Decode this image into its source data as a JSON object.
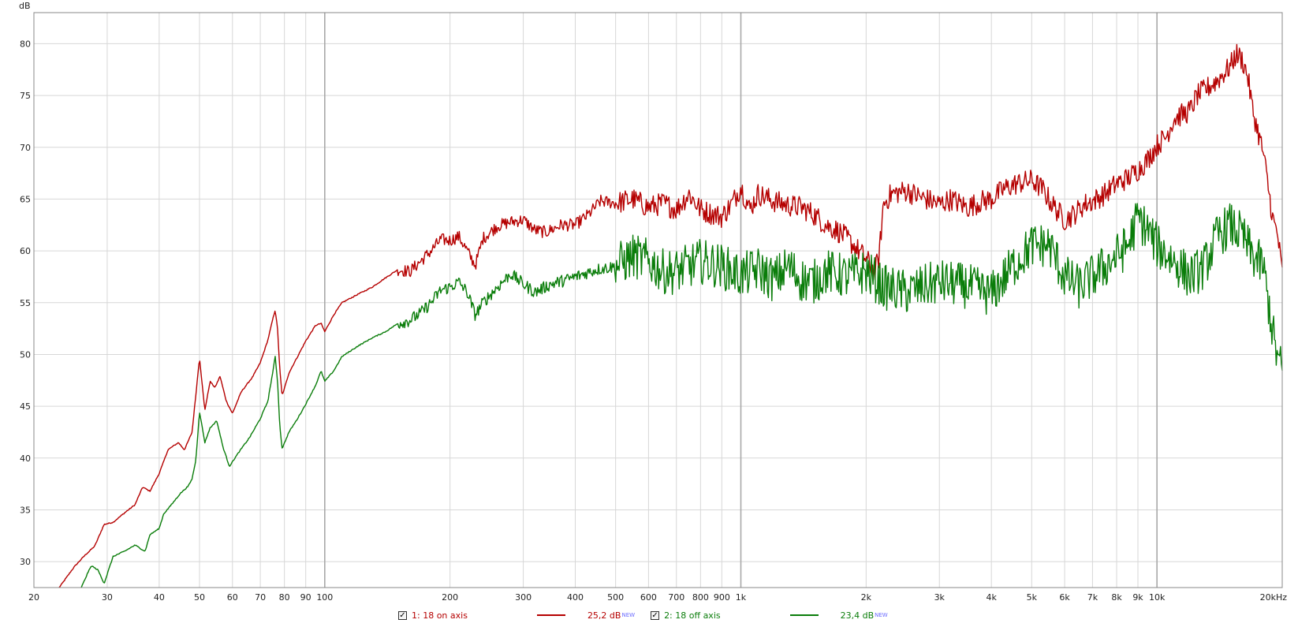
{
  "colors": {
    "series_1": "#b50000",
    "series_2": "#0a7d0a",
    "grid": "#d7d7d7",
    "grid_major": "#a8a8a8"
  },
  "legend": {
    "items": [
      {
        "checked": true,
        "check_glyph": "✓",
        "label": "1: 18 on axis",
        "value": "25,2 dB",
        "tag": "NEW",
        "color": "#b50000"
      },
      {
        "checked": true,
        "check_glyph": "✓",
        "label": "2: 18 off axis",
        "value": "23,4 dB",
        "tag": "NEW",
        "color": "#0a7d0a"
      }
    ]
  },
  "chart_data": {
    "type": "line",
    "x_scale": "log",
    "y_unit_label": "dB",
    "xlim": [
      20,
      20000
    ],
    "ylim": [
      27.5,
      83
    ],
    "grid": true,
    "y_ticks": [
      30,
      35,
      40,
      45,
      50,
      55,
      60,
      65,
      70,
      75,
      80
    ],
    "x_ticks": [
      {
        "v": 20,
        "t": "20"
      },
      {
        "v": 30,
        "t": "30"
      },
      {
        "v": 40,
        "t": "40"
      },
      {
        "v": 50,
        "t": "50"
      },
      {
        "v": 60,
        "t": "60"
      },
      {
        "v": 70,
        "t": "70"
      },
      {
        "v": 80,
        "t": "80"
      },
      {
        "v": 90,
        "t": "90"
      },
      {
        "v": 100,
        "t": "100"
      },
      {
        "v": 200,
        "t": "200"
      },
      {
        "v": 300,
        "t": "300"
      },
      {
        "v": 400,
        "t": "400"
      },
      {
        "v": 500,
        "t": "500"
      },
      {
        "v": 600,
        "t": "600"
      },
      {
        "v": 700,
        "t": "700"
      },
      {
        "v": 800,
        "t": "800"
      },
      {
        "v": 900,
        "t": "900"
      },
      {
        "v": 1000,
        "t": "1k"
      },
      {
        "v": 2000,
        "t": "2k"
      },
      {
        "v": 3000,
        "t": "3k"
      },
      {
        "v": 4000,
        "t": "4k"
      },
      {
        "v": 5000,
        "t": "5k"
      },
      {
        "v": 6000,
        "t": "6k"
      },
      {
        "v": 7000,
        "t": "7k"
      },
      {
        "v": 8000,
        "t": "8k"
      },
      {
        "v": 9000,
        "t": "9k"
      },
      {
        "v": 10000,
        "t": "10k"
      },
      {
        "v": 20000,
        "t": "20kHz"
      }
    ],
    "series": [
      {
        "name": "1: 18 on axis",
        "color": "#b50000",
        "points": [
          [
            23,
            27.5
          ],
          [
            25,
            29.5
          ],
          [
            26.5,
            30.6
          ],
          [
            28,
            31.5
          ],
          [
            29.5,
            33.6
          ],
          [
            31,
            33.8
          ],
          [
            33,
            34.7
          ],
          [
            35,
            35.5
          ],
          [
            36.5,
            37.2
          ],
          [
            38,
            36.8
          ],
          [
            40,
            38.5
          ],
          [
            42,
            40.8
          ],
          [
            44.5,
            41.5
          ],
          [
            46,
            40.8
          ],
          [
            48,
            42.5
          ],
          [
            50,
            49.7
          ],
          [
            51.5,
            44.6
          ],
          [
            53,
            47.4
          ],
          [
            54.5,
            46.8
          ],
          [
            56,
            47.9
          ],
          [
            58,
            45.5
          ],
          [
            60,
            44.3
          ],
          [
            63,
            46.4
          ],
          [
            67,
            47.8
          ],
          [
            70,
            49.2
          ],
          [
            73,
            51.4
          ],
          [
            75,
            53.4
          ],
          [
            76,
            54.3
          ],
          [
            77,
            52.5
          ],
          [
            78,
            48.5
          ],
          [
            79,
            46.0
          ],
          [
            82,
            48.2
          ],
          [
            85,
            49.4
          ],
          [
            90,
            51.3
          ],
          [
            95,
            52.8
          ],
          [
            98,
            53.0
          ],
          [
            100,
            52.2
          ],
          [
            105,
            53.8
          ],
          [
            110,
            55.0
          ],
          [
            120,
            55.8
          ],
          [
            130,
            56.5
          ],
          [
            140,
            57.4
          ],
          [
            150,
            58.2
          ],
          [
            160,
            58.0
          ],
          [
            170,
            59.0
          ],
          [
            180,
            60.0
          ],
          [
            190,
            61.1
          ],
          [
            200,
            61.0
          ],
          [
            210,
            61.4
          ],
          [
            220,
            60.0
          ],
          [
            230,
            58.6
          ],
          [
            240,
            61.2
          ],
          [
            260,
            62.4
          ],
          [
            280,
            62.8
          ],
          [
            300,
            63.0
          ],
          [
            320,
            62.0
          ],
          [
            340,
            61.8
          ],
          [
            370,
            62.5
          ],
          [
            400,
            62.5
          ],
          [
            430,
            63.5
          ],
          [
            460,
            64.8
          ],
          [
            500,
            64.6
          ],
          [
            550,
            65.0
          ],
          [
            600,
            64.2
          ],
          [
            650,
            64.6
          ],
          [
            700,
            64.0
          ],
          [
            750,
            65.5
          ],
          [
            800,
            64.0
          ],
          [
            850,
            63.6
          ],
          [
            900,
            63.3
          ],
          [
            950,
            64.5
          ],
          [
            1000,
            66.2
          ],
          [
            1050,
            64.0
          ],
          [
            1100,
            65.5
          ],
          [
            1200,
            64.8
          ],
          [
            1300,
            64.4
          ],
          [
            1400,
            64.2
          ],
          [
            1500,
            63.5
          ],
          [
            1600,
            62.5
          ],
          [
            1700,
            62.0
          ],
          [
            1800,
            61.2
          ],
          [
            1900,
            60.2
          ],
          [
            2000,
            59.2
          ],
          [
            2100,
            58.0
          ],
          [
            2150,
            59.5
          ],
          [
            2200,
            64.5
          ],
          [
            2300,
            65.5
          ],
          [
            2500,
            65.8
          ],
          [
            2700,
            65.2
          ],
          [
            3000,
            64.5
          ],
          [
            3200,
            65.0
          ],
          [
            3500,
            64.2
          ],
          [
            3800,
            64.8
          ],
          [
            4000,
            65.0
          ],
          [
            4300,
            66.0
          ],
          [
            4600,
            66.5
          ],
          [
            5000,
            66.8
          ],
          [
            5300,
            66.0
          ],
          [
            5600,
            64.5
          ],
          [
            6000,
            63.0
          ],
          [
            6300,
            63.5
          ],
          [
            6700,
            64.5
          ],
          [
            7000,
            64.8
          ],
          [
            7500,
            65.5
          ],
          [
            8000,
            66.5
          ],
          [
            8500,
            67.0
          ],
          [
            9000,
            67.8
          ],
          [
            9500,
            68.8
          ],
          [
            10000,
            70.2
          ],
          [
            10500,
            71.0
          ],
          [
            11000,
            72.8
          ],
          [
            12000,
            73.5
          ],
          [
            12500,
            75.0
          ],
          [
            13000,
            75.5
          ],
          [
            14000,
            76.5
          ],
          [
            15000,
            77.8
          ],
          [
            15500,
            79.0
          ],
          [
            16000,
            78.5
          ],
          [
            16500,
            77.0
          ],
          [
            17000,
            73.5
          ],
          [
            18000,
            69.5
          ],
          [
            19000,
            63.0
          ],
          [
            19500,
            61.5
          ],
          [
            20000,
            57.8
          ]
        ]
      },
      {
        "name": "2: 18 off axis",
        "color": "#0a7d0a",
        "points": [
          [
            26,
            27.5
          ],
          [
            27,
            29.0
          ],
          [
            27.5,
            29.6
          ],
          [
            28.5,
            29.2
          ],
          [
            29.5,
            27.9
          ],
          [
            31,
            30.5
          ],
          [
            33,
            31.0
          ],
          [
            35,
            31.6
          ],
          [
            37,
            31.0
          ],
          [
            38,
            32.6
          ],
          [
            40,
            33.2
          ],
          [
            41,
            34.6
          ],
          [
            43,
            35.6
          ],
          [
            45,
            36.6
          ],
          [
            47,
            37.3
          ],
          [
            48,
            38.0
          ],
          [
            49,
            39.8
          ],
          [
            50,
            44.5
          ],
          [
            51.5,
            41.5
          ],
          [
            53,
            42.9
          ],
          [
            55,
            43.6
          ],
          [
            57,
            41.0
          ],
          [
            59,
            39.2
          ],
          [
            62,
            40.5
          ],
          [
            66,
            42.0
          ],
          [
            70,
            43.8
          ],
          [
            73,
            45.5
          ],
          [
            75,
            48.3
          ],
          [
            76,
            49.8
          ],
          [
            77,
            47.5
          ],
          [
            78,
            43.0
          ],
          [
            79,
            40.9
          ],
          [
            82,
            42.5
          ],
          [
            86,
            43.8
          ],
          [
            90,
            45.2
          ],
          [
            95,
            47.0
          ],
          [
            98,
            48.4
          ],
          [
            100,
            47.4
          ],
          [
            105,
            48.4
          ],
          [
            110,
            49.8
          ],
          [
            120,
            50.8
          ],
          [
            130,
            51.6
          ],
          [
            140,
            52.2
          ],
          [
            150,
            53.0
          ],
          [
            160,
            53.3
          ],
          [
            170,
            54.0
          ],
          [
            180,
            55.0
          ],
          [
            190,
            56.2
          ],
          [
            200,
            56.5
          ],
          [
            210,
            57.0
          ],
          [
            220,
            56.0
          ],
          [
            230,
            53.8
          ],
          [
            240,
            55.0
          ],
          [
            260,
            56.5
          ],
          [
            280,
            57.8
          ],
          [
            300,
            56.8
          ],
          [
            320,
            56.0
          ],
          [
            350,
            56.8
          ],
          [
            380,
            57.2
          ],
          [
            400,
            57.5
          ],
          [
            450,
            58.2
          ],
          [
            500,
            58.5
          ],
          [
            550,
            59.5
          ],
          [
            600,
            59.0
          ],
          [
            650,
            58.0
          ],
          [
            700,
            58.0
          ],
          [
            800,
            59.0
          ],
          [
            900,
            58.5
          ],
          [
            1000,
            57.6
          ],
          [
            1100,
            58.2
          ],
          [
            1200,
            57.2
          ],
          [
            1300,
            58.5
          ],
          [
            1400,
            57.2
          ],
          [
            1500,
            57.0
          ],
          [
            1600,
            58.0
          ],
          [
            1800,
            57.5
          ],
          [
            2000,
            58.0
          ],
          [
            2200,
            56.5
          ],
          [
            2500,
            56.0
          ],
          [
            3000,
            57.0
          ],
          [
            3500,
            56.6
          ],
          [
            4000,
            55.8
          ],
          [
            4500,
            58.5
          ],
          [
            5000,
            60.5
          ],
          [
            5500,
            60.6
          ],
          [
            6000,
            57.5
          ],
          [
            6500,
            56.5
          ],
          [
            7000,
            57.5
          ],
          [
            7500,
            58.5
          ],
          [
            8000,
            59.5
          ],
          [
            8500,
            60.5
          ],
          [
            9000,
            63.2
          ],
          [
            9500,
            62.0
          ],
          [
            10000,
            60.5
          ],
          [
            11000,
            59.0
          ],
          [
            12000,
            57.5
          ],
          [
            13000,
            58.5
          ],
          [
            14000,
            61.5
          ],
          [
            15000,
            62.5
          ],
          [
            16000,
            61.5
          ],
          [
            16500,
            60.5
          ],
          [
            17000,
            59.5
          ],
          [
            18000,
            58.5
          ],
          [
            19000,
            52.0
          ],
          [
            19500,
            49.5
          ],
          [
            20000,
            48.5
          ]
        ]
      }
    ]
  }
}
